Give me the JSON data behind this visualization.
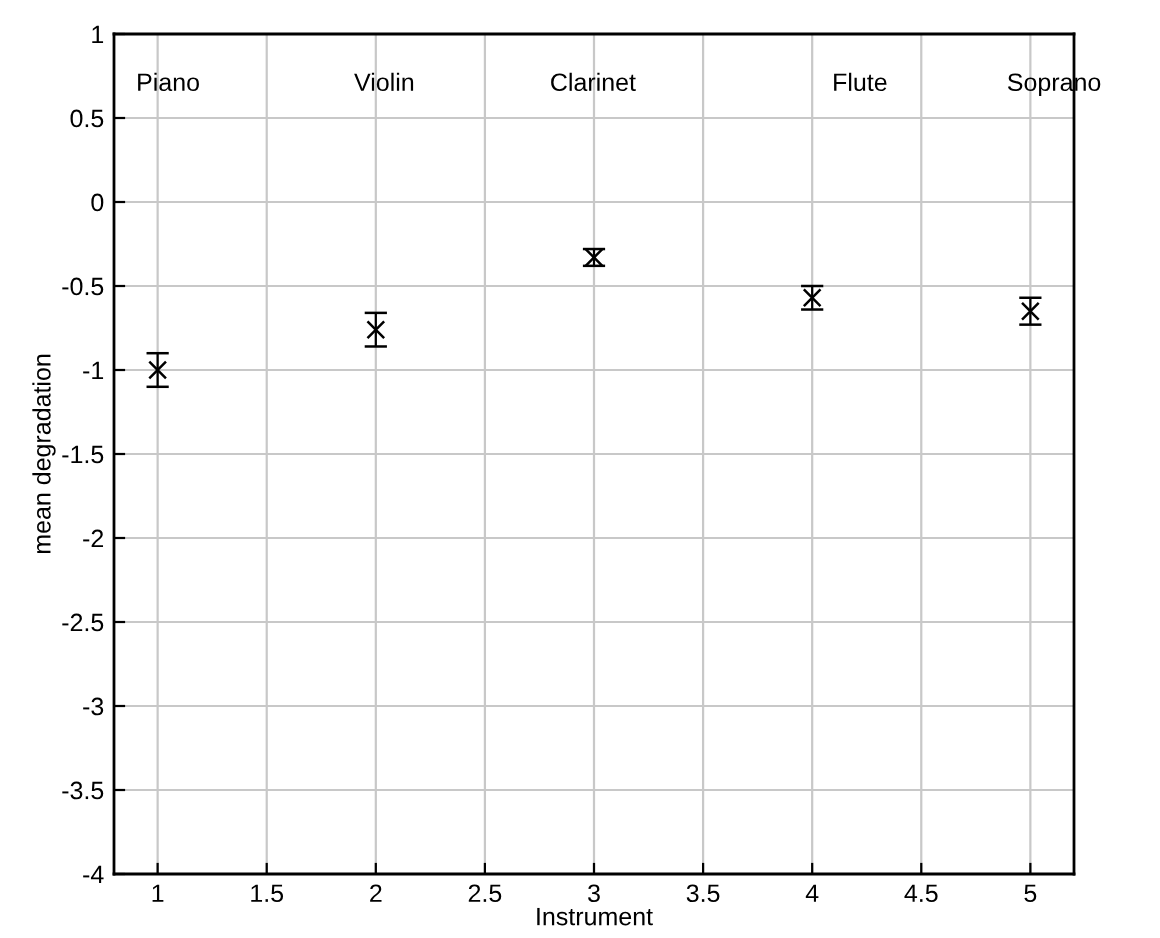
{
  "chart_data": {
    "type": "scatter",
    "xlabel": "Instrument",
    "ylabel": "mean degradation",
    "x": [
      1,
      2,
      3,
      4,
      5
    ],
    "values": [
      -1.0,
      -0.76,
      -0.33,
      -0.57,
      -0.65
    ],
    "errors": [
      0.1,
      0.1,
      0.05,
      0.07,
      0.08
    ],
    "color": "#000000",
    "marker": "cross",
    "xlim": [
      0.8,
      5.2
    ],
    "ylim": [
      -4,
      1
    ],
    "xticks": [
      1,
      1.5,
      2,
      2.5,
      3,
      3.5,
      4,
      4.5,
      5
    ],
    "yticks": [
      -4,
      -3.5,
      -3,
      -2.5,
      -2,
      -1.5,
      -1,
      -0.5,
      0,
      0.5,
      1
    ],
    "grid": true,
    "annotations": [
      "Piano",
      "Violin",
      "Clarinet",
      "Flute",
      "Soprano"
    ]
  }
}
